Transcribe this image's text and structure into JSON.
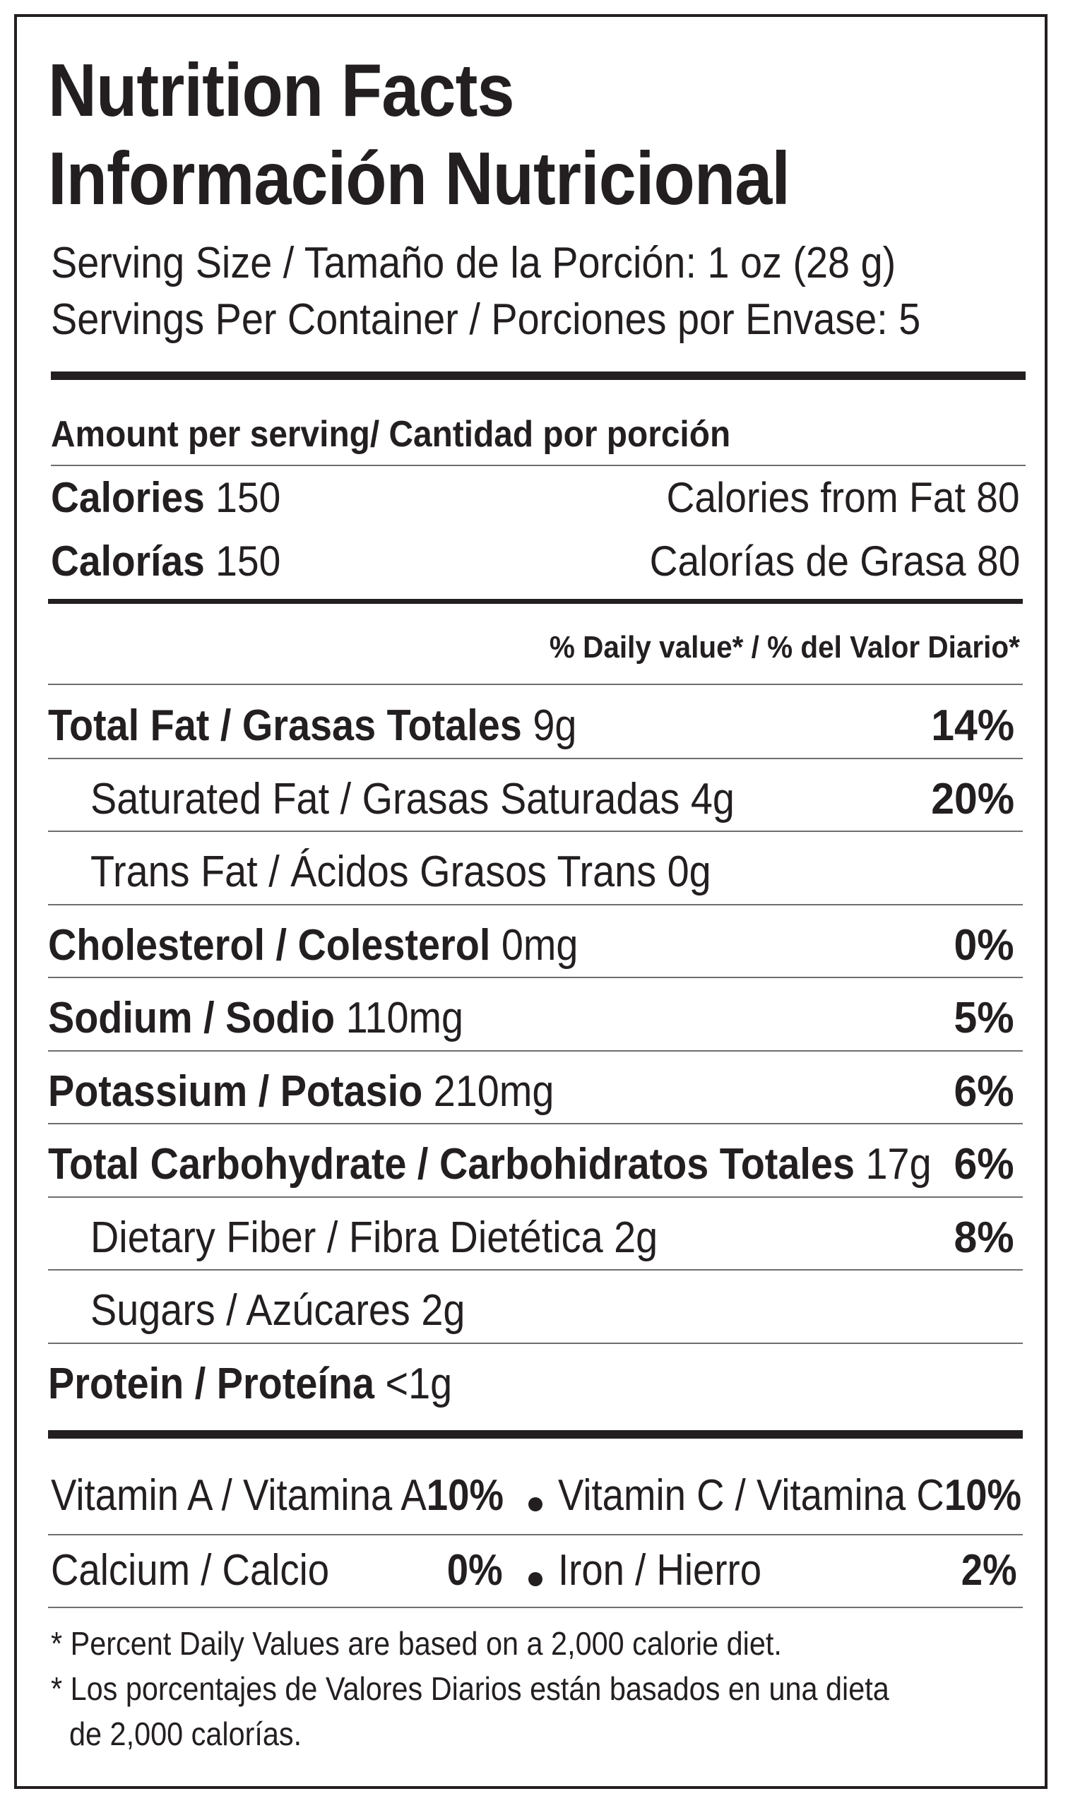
{
  "title_en": "Nutrition Facts",
  "title_es": "Información Nutricional",
  "serving_size": "Serving Size / Tamaño de la Porción:  1 oz (28 g)",
  "servings_per_container": "Servings Per Container / Porciones por Envase: 5",
  "amount_per_serving": "Amount per serving/ Cantidad por porción",
  "calories": {
    "label_en": "Calories",
    "value_en": " 150",
    "fat_en": "Calories from Fat 80",
    "label_es": "Calorías",
    "value_es": " 150",
    "fat_es": "Calorías de Grasa 80"
  },
  "daily_value_header": "% Daily value* / % del Valor Diario*",
  "nutrients": [
    {
      "name": "Total Fat / Grasas Totales",
      "amount": " 9g",
      "dv": "14%"
    },
    {
      "name": "Saturated Fat / Grasas Saturadas 4g",
      "amount": "",
      "dv": "20%"
    },
    {
      "name": "Trans Fat / Ácidos Grasos Trans 0g",
      "amount": "",
      "dv": ""
    },
    {
      "name": "Cholesterol / Colesterol",
      "amount": "  0mg",
      "dv": "0%"
    },
    {
      "name": "Sodium / Sodio",
      "amount": " 110mg",
      "dv": "5%"
    },
    {
      "name": "Potassium / Potasio",
      "amount": " 210mg",
      "dv": "6%"
    },
    {
      "name": "Total Carbohydrate / Carbohidratos Totales",
      "amount": " 17g",
      "dv": "6%"
    },
    {
      "name": "Dietary Fiber / Fibra Dietética  2g",
      "amount": "",
      "dv": "8%"
    },
    {
      "name": "Sugars / Azúcares 2g",
      "amount": "",
      "dv": ""
    },
    {
      "name": "Protein / Proteína",
      "amount": " <1g",
      "dv": ""
    }
  ],
  "vitamins": {
    "vit_a_label": "Vitamin A / Vitamina A",
    "vit_a_dv": "10%",
    "vit_c_label": "Vitamin C / Vitamina C",
    "vit_c_dv": "10%",
    "calcium_label": "Calcium / Calcio",
    "calcium_dv": "0%",
    "iron_label": "Iron / Hierro",
    "iron_dv": "2%"
  },
  "footnote_en": "* Percent Daily Values are based on a 2,000 calorie diet.",
  "footnote_es_1": "* Los porcentajes de Valores Diarios están basados en una dieta",
  "footnote_es_2": "de 2,000 calorías."
}
